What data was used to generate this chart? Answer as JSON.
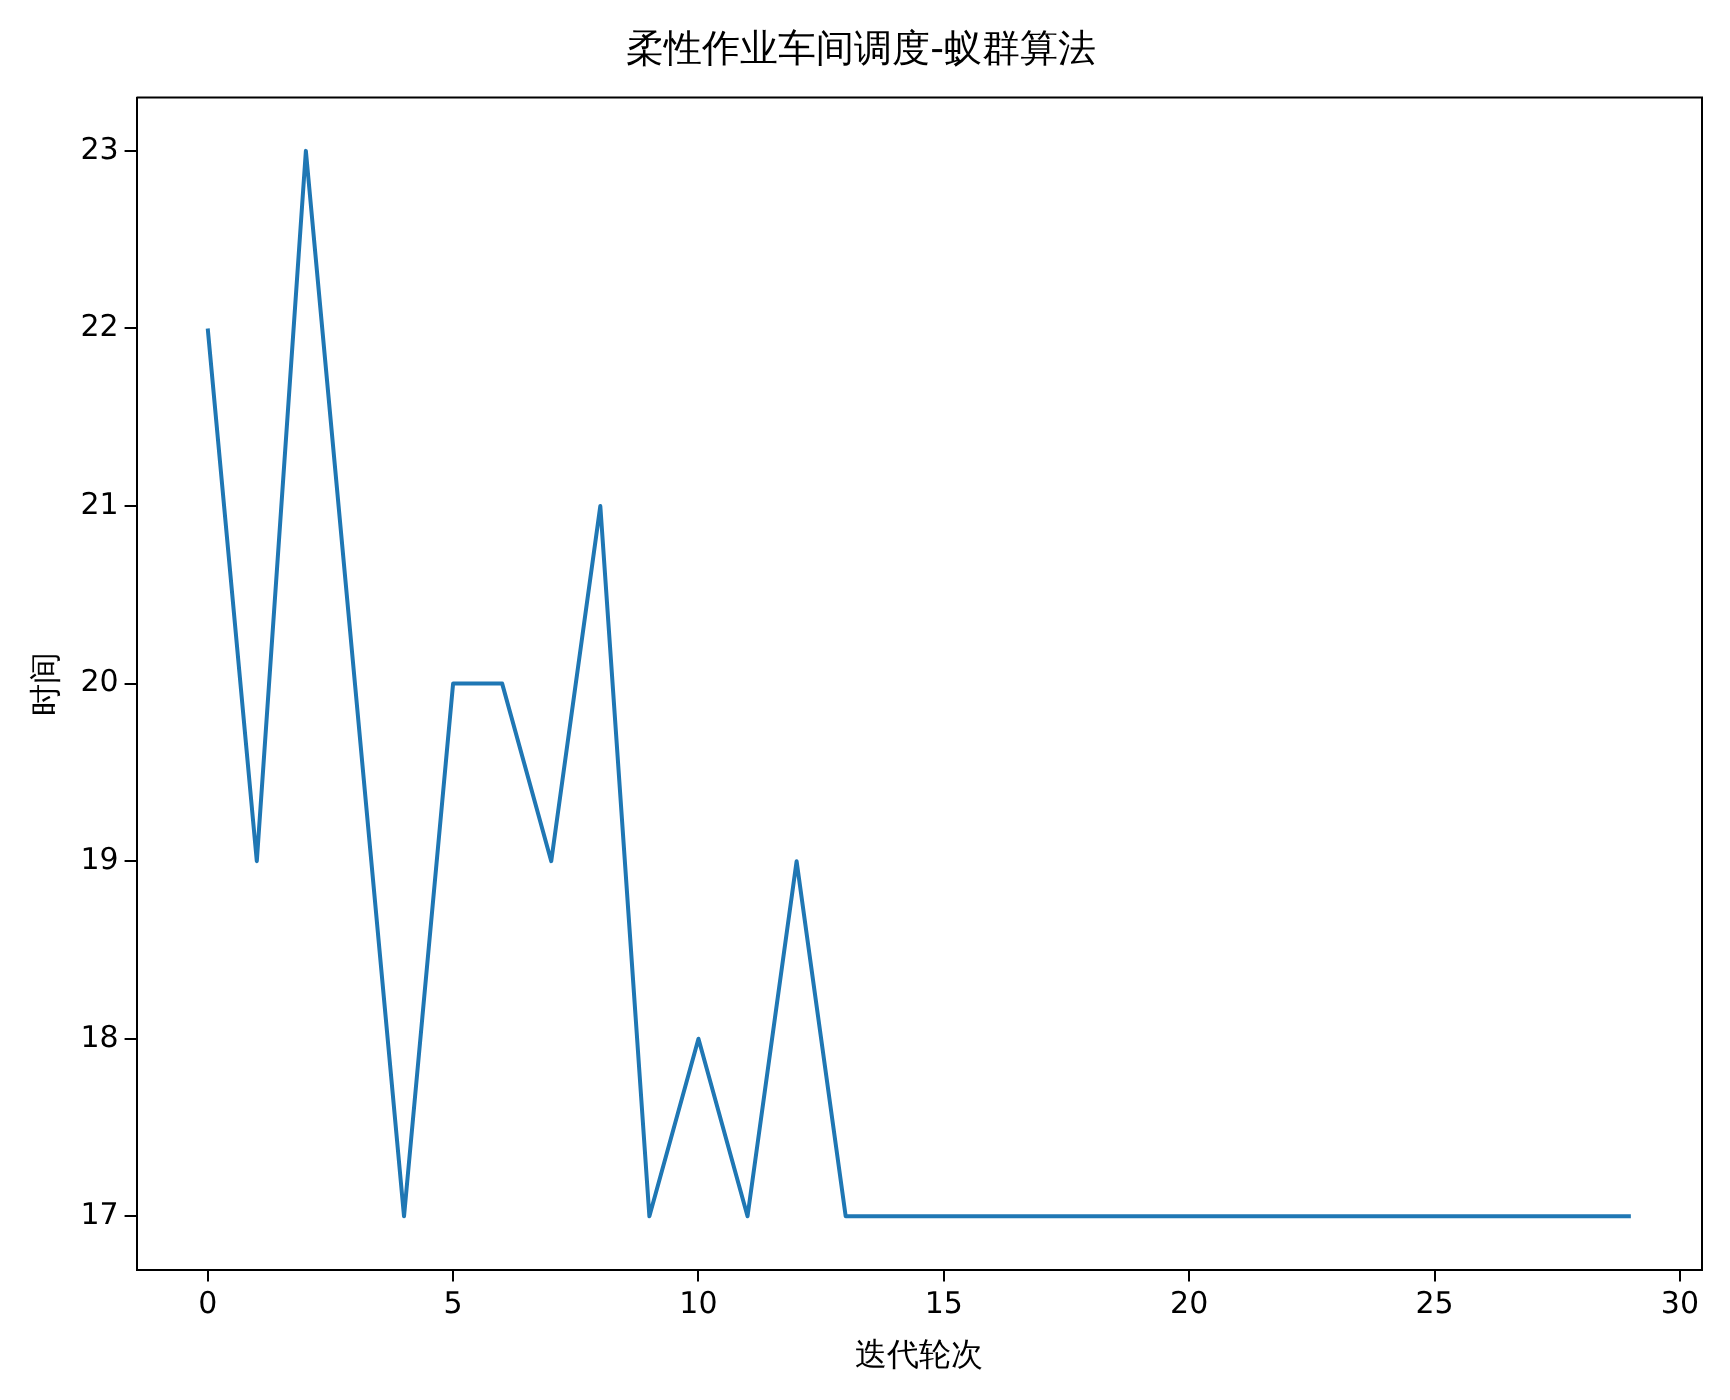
{
  "chart_data": {
    "type": "line",
    "title": "柔性作业车间调度-蚁群算法",
    "xlabel": "迭代轮次",
    "ylabel": "时间",
    "x": [
      0,
      1,
      2,
      3,
      4,
      5,
      6,
      7,
      8,
      9,
      10,
      11,
      12,
      13,
      14,
      15,
      16,
      17,
      18,
      19,
      20,
      21,
      22,
      23,
      24,
      25,
      26,
      27,
      28,
      29
    ],
    "series": [
      {
        "color": "#1f77b4",
        "values": [
          22,
          19,
          23,
          20,
          17,
          20,
          20,
          19,
          21,
          17,
          18,
          17,
          19,
          17,
          17,
          17,
          17,
          17,
          17,
          17,
          17,
          17,
          17,
          17,
          17,
          17,
          17,
          17,
          17,
          17
        ]
      }
    ],
    "xlim": [
      -1.45,
      30.45
    ],
    "xticks": [
      0,
      5,
      10,
      15,
      20,
      25,
      30
    ],
    "ylim": [
      16.7,
      23.3
    ],
    "yticks": [
      17,
      18,
      19,
      20,
      21,
      22,
      23
    ],
    "grid": false,
    "legend": false,
    "marker": "none",
    "line_style": "solid"
  }
}
